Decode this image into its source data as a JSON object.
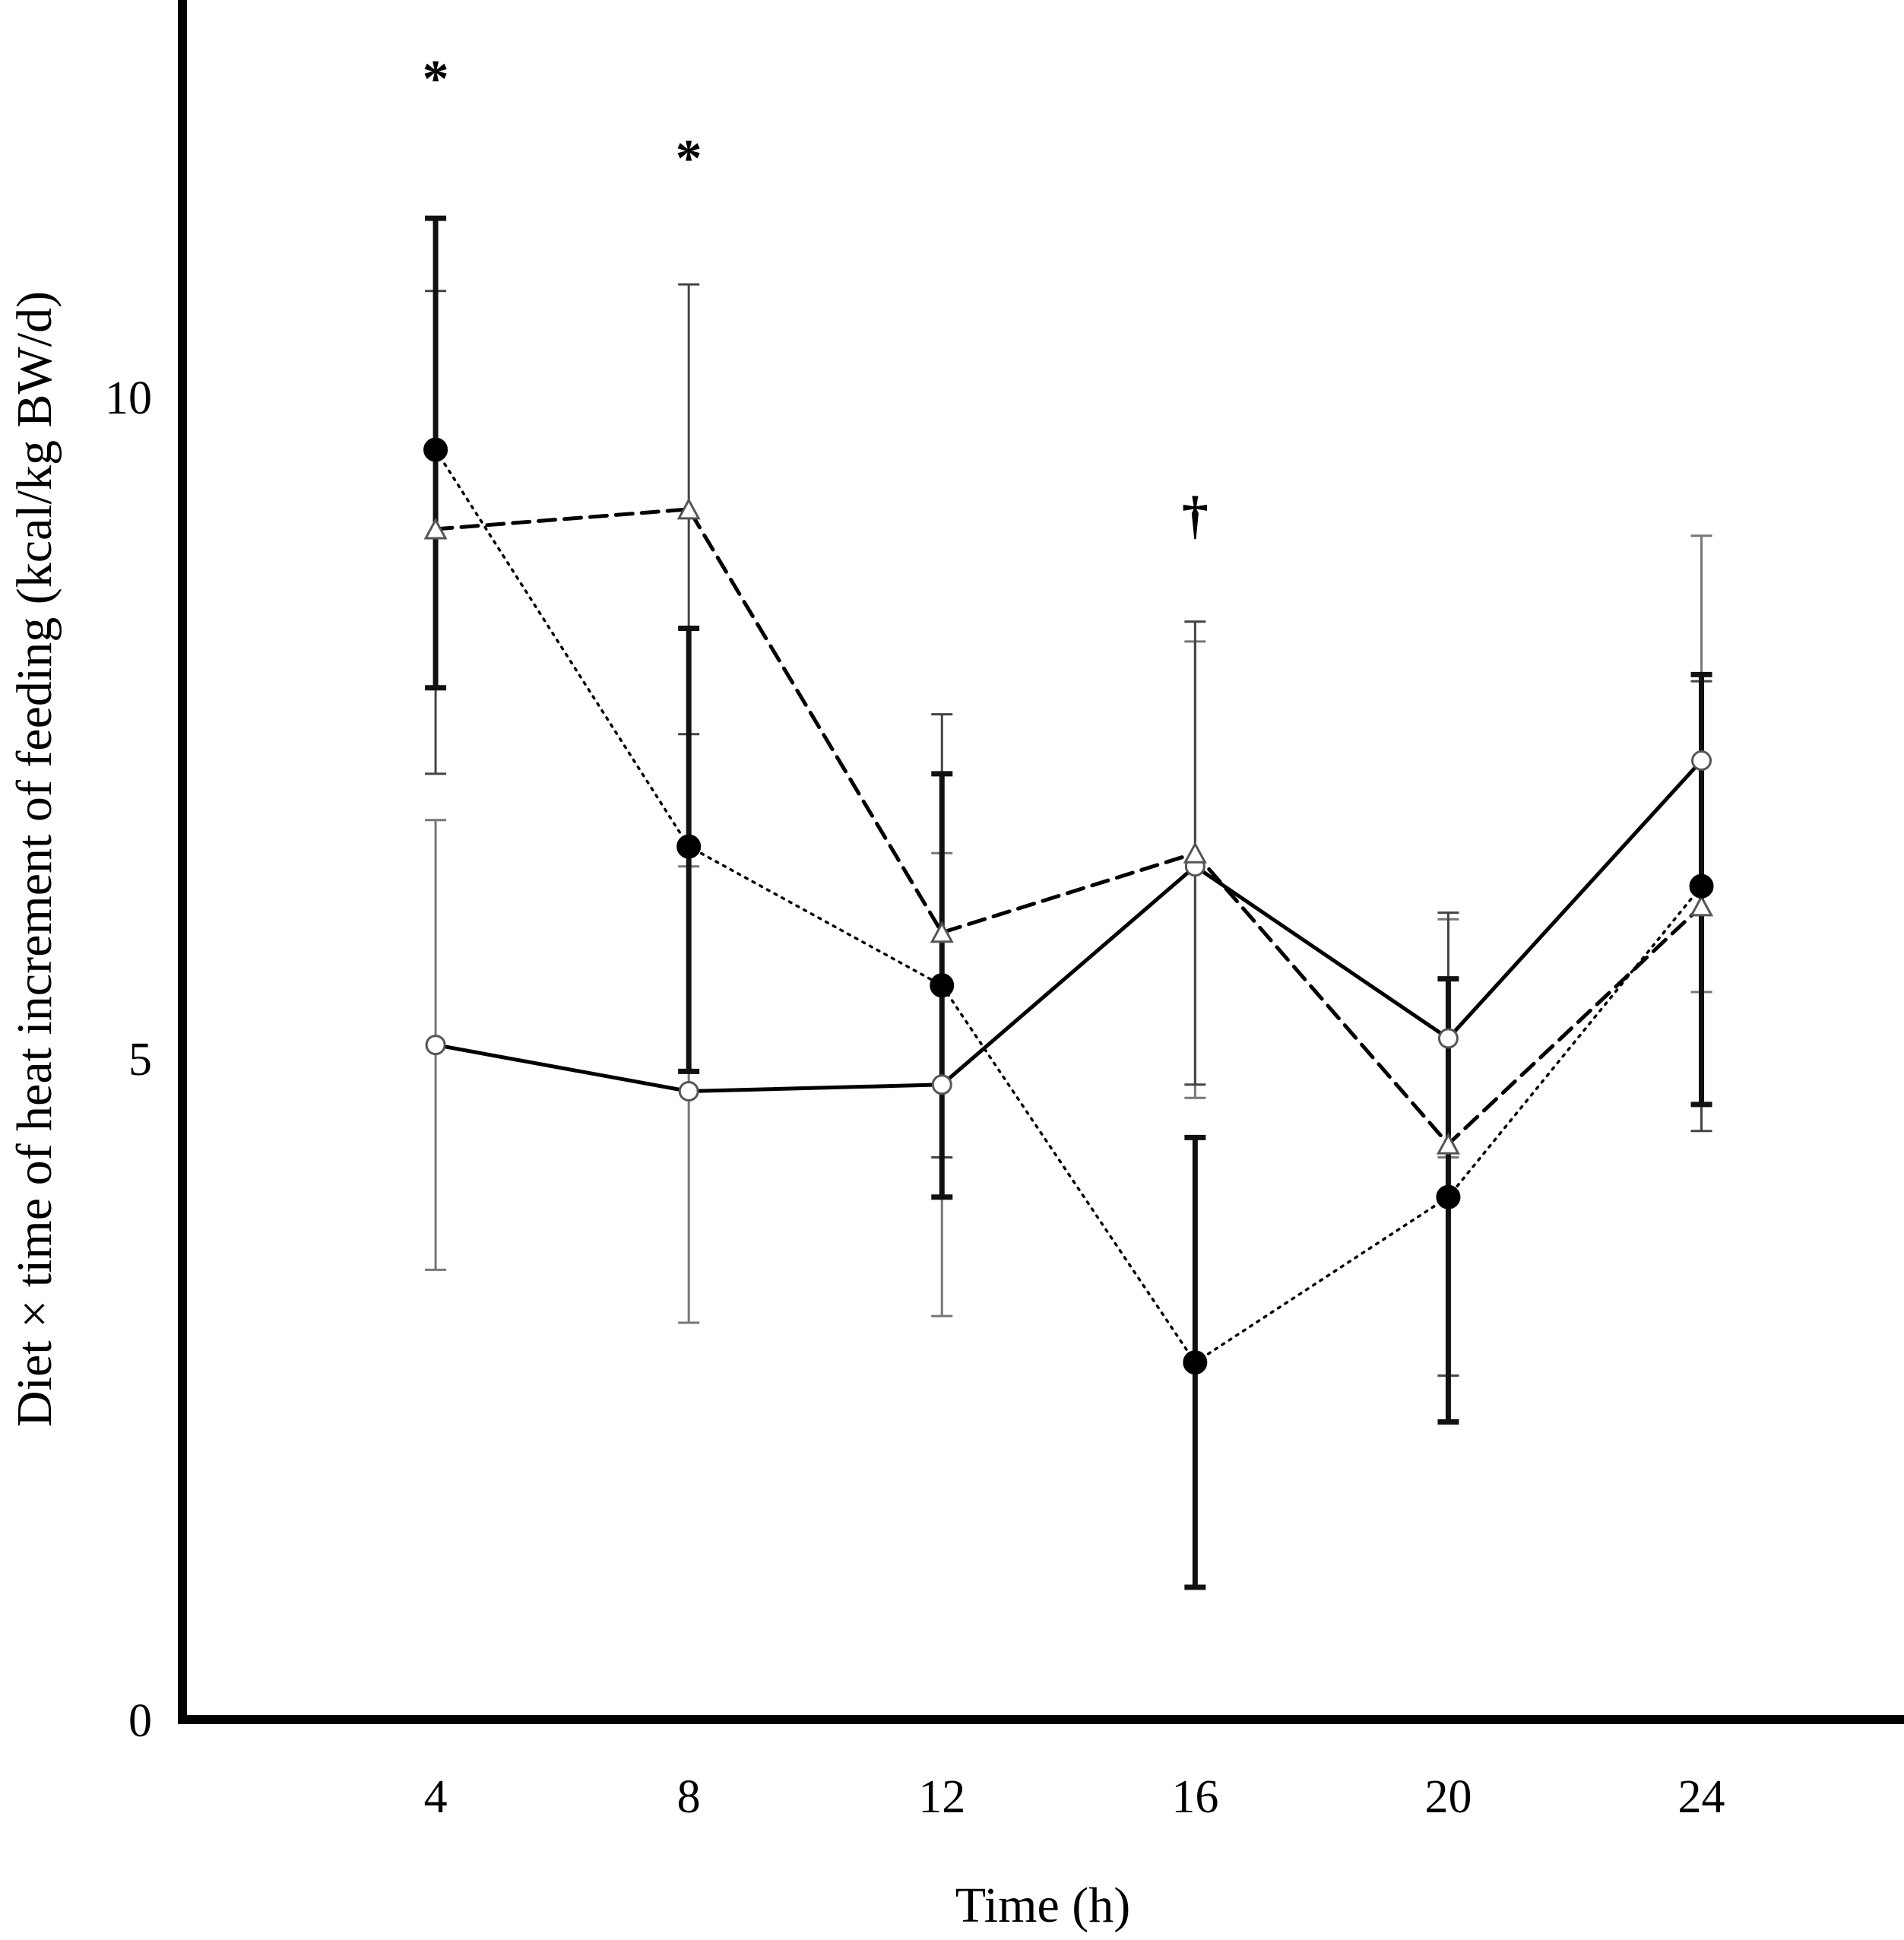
{
  "chart_data": {
    "type": "line",
    "title": "",
    "xlabel": "Time (h)",
    "ylabel": "Diet × time of heat increment of feeding (kcal/kg BW/d)",
    "x": [
      4,
      8,
      12,
      16,
      20,
      24
    ],
    "x_tick_labels": [
      "4",
      "8",
      "12",
      "16",
      "20",
      "24"
    ],
    "y_ticks": [
      0,
      5,
      10
    ],
    "y_tick_labels": [
      "0",
      "5",
      "10"
    ],
    "xlim": [
      0,
      27.2
    ],
    "ylim": [
      0,
      13
    ],
    "grid": false,
    "legend": "none",
    "series": [
      {
        "name": "open-circle-solid",
        "marker": "open-circle",
        "line": "solid",
        "values": [
          5.1,
          4.75,
          4.8,
          6.45,
          5.15,
          7.25
        ],
        "err_low": [
          3.4,
          3.0,
          3.05,
          4.7,
          4.25,
          5.5
        ],
        "err_high": [
          6.8,
          6.45,
          6.55,
          8.15,
          6.05,
          8.95
        ]
      },
      {
        "name": "open-triangle-dashed",
        "marker": "open-triangle",
        "line": "dashed",
        "values": [
          9.0,
          9.15,
          5.95,
          6.55,
          4.35,
          6.15
        ],
        "err_low": [
          7.15,
          7.45,
          4.25,
          4.8,
          2.6,
          4.45
        ],
        "err_high": [
          10.8,
          10.85,
          7.6,
          8.3,
          6.1,
          7.85
        ]
      },
      {
        "name": "filled-circle-dotted",
        "marker": "filled-circle",
        "line": "dotted",
        "values": [
          9.6,
          6.6,
          5.55,
          2.7,
          3.95,
          6.3
        ],
        "err_low": [
          7.8,
          4.9,
          3.95,
          1.0,
          2.25,
          4.65
        ],
        "err_high": [
          11.35,
          8.25,
          7.15,
          4.4,
          5.6,
          7.9
        ]
      }
    ],
    "annotations": [
      {
        "x": 4,
        "y": 12.5,
        "text": "*"
      },
      {
        "x": 8,
        "y": 11.9,
        "text": "*"
      },
      {
        "x": 16,
        "y": 9.2,
        "text": "†"
      }
    ]
  }
}
